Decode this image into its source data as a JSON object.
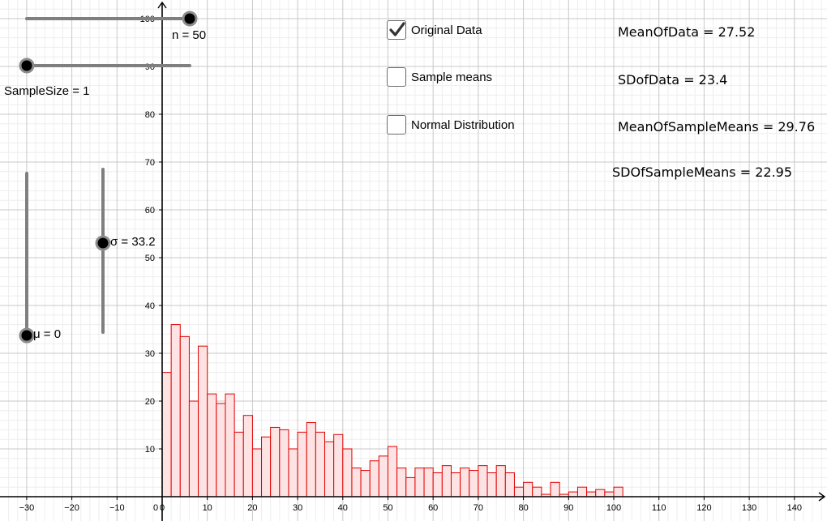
{
  "sliders": {
    "n": {
      "label": "n = 50",
      "value": 50,
      "min": 0,
      "max": 100
    },
    "sample_size": {
      "label": "SampleSize = 1",
      "value": 1
    },
    "sigma": {
      "label": "σ = 33.2",
      "value": 33.2
    },
    "mu": {
      "label": "μ = 0",
      "value": 0
    }
  },
  "checkboxes": [
    {
      "label": "Original Data",
      "checked": true
    },
    {
      "label": "Sample means",
      "checked": false
    },
    {
      "label": "Normal Distribution",
      "checked": false
    }
  ],
  "stats": {
    "mean_of_data": "MeanOfData  =  27.52",
    "sd_of_data": "SDofData  =  23.4",
    "mean_of_sample_means": "MeanOfSampleMeans  =  29.76",
    "sd_of_sample_means": "SDOfSampleMeans  =  22.95"
  },
  "colors": {
    "bar_stroke": "#e00000",
    "bar_fill": "#fde3e3",
    "grid_major": "#c8c8c8",
    "grid_minor": "#eeeeee",
    "slider_line": "#7f7f7f"
  },
  "chart_data": {
    "type": "bar",
    "title": "",
    "xlabel": "",
    "ylabel": "",
    "xlim": [
      -36,
      146
    ],
    "ylim": [
      0,
      105
    ],
    "bin_width": 2,
    "bin_start": 0,
    "x_ticks": [
      -30,
      -20,
      -10,
      0,
      10,
      20,
      30,
      40,
      50,
      60,
      70,
      80,
      90,
      100,
      110,
      120,
      130,
      140
    ],
    "y_ticks": [
      10,
      20,
      30,
      40,
      50,
      60,
      70,
      80,
      90,
      100
    ],
    "grid": true,
    "values": [
      26,
      36,
      33.5,
      20,
      31.5,
      21.5,
      19.5,
      21.5,
      13.5,
      17,
      10,
      12.5,
      14.5,
      14,
      10,
      13.5,
      15.5,
      13.5,
      11.5,
      13,
      10,
      6,
      5.5,
      7.5,
      8.5,
      10.5,
      6,
      4,
      6,
      6,
      5,
      6.5,
      5,
      6,
      5.5,
      6.5,
      5,
      6.5,
      5,
      2,
      3,
      2,
      0.5,
      3,
      0.5,
      1,
      2,
      1,
      1.5,
      1,
      2
    ]
  }
}
